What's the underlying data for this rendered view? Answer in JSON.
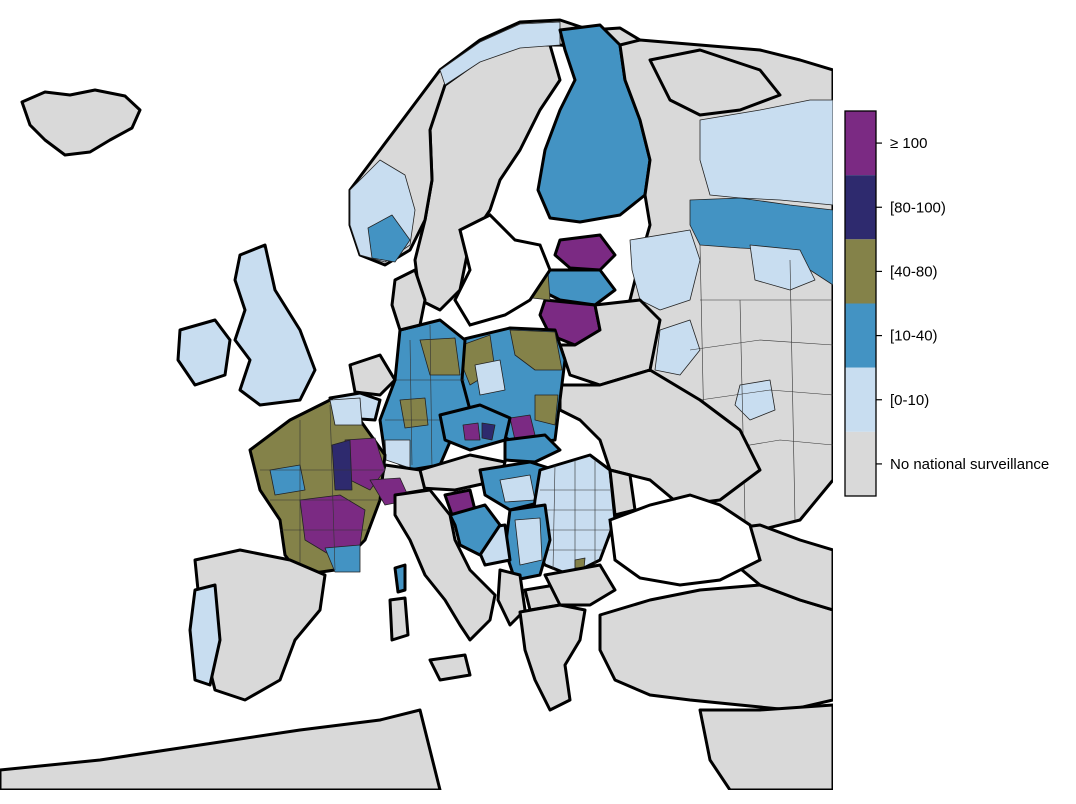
{
  "legend": {
    "items": [
      {
        "label": "≥ 100",
        "color": "#7b2a83"
      },
      {
        "label": "[80-100)",
        "color": "#2e2a6e"
      },
      {
        "label": "[40-80)",
        "color": "#848249"
      },
      {
        "label": "[10-40)",
        "color": "#4393c3"
      },
      {
        "label": "[0-10)",
        "color": "#c8ddf0"
      },
      {
        "label": "No national surveillance",
        "color": "#d9d9d9"
      }
    ]
  },
  "colors": {
    "none": "#d9d9d9",
    "c0_10": "#c8ddf0",
    "c10_40": "#4393c3",
    "c40_80": "#848249",
    "c80_100": "#2e2a6e",
    "c100": "#7b2a83"
  }
}
